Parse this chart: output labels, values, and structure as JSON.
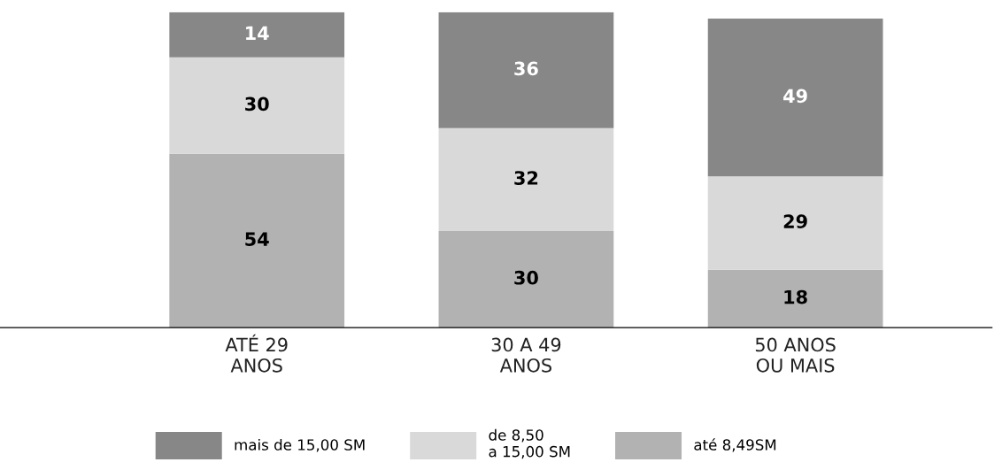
{
  "chart_data": {
    "type": "bar",
    "stacked": true,
    "data_labels": true,
    "legend": "bottom",
    "tick_labels": "x",
    "grid": false,
    "ylim": [
      0,
      98
    ],
    "categories": [
      "ATÉ 29\nANOS",
      "30 A 49\nANOS",
      "50 ANOS\nOU MAIS"
    ],
    "series": [
      {
        "name": "até 8,49SM",
        "color": "#b2b2b2",
        "values": [
          54,
          30,
          18
        ]
      },
      {
        "name": "de 8,50\na 15,00 SM",
        "color": "#d9d9d9",
        "values": [
          30,
          32,
          29
        ]
      },
      {
        "name": "mais de 15,00 SM",
        "color": "#878787",
        "values": [
          14,
          36,
          49
        ]
      }
    ]
  }
}
